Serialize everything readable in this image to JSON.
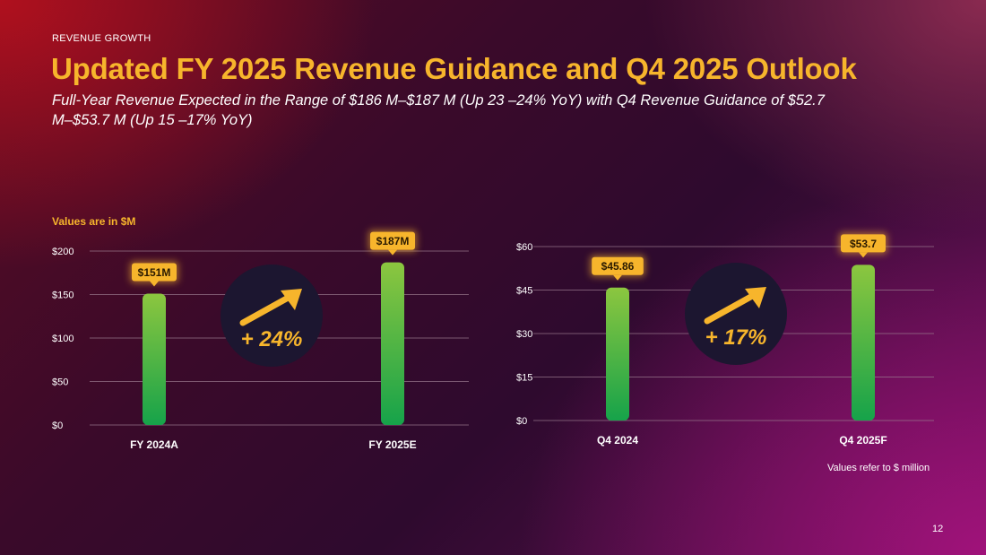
{
  "header": {
    "section_label": "REVENUE GROWTH",
    "title": "Updated FY 2025 Revenue Guidance and Q4 2025 Outlook",
    "subtitle": "Full-Year Revenue Expected in the Range of $186 M–$187 M (Up 23 –24% YoY) with Q4 Revenue Guidance of $52.7 M–$53.7 M (Up 15 –17% YoY)"
  },
  "notes": {
    "units": "Values are in $M",
    "footnote": "Values refer to $ million",
    "page_number": "12"
  },
  "colors": {
    "accent": "#f7b52c",
    "bar_top": "#8cc63f",
    "bar_bottom": "#16a34a",
    "badge_bg": "#1c1630"
  },
  "chart_data": [
    {
      "type": "bar",
      "categories": [
        "FY 2024A",
        "FY 2025E"
      ],
      "values": [
        151,
        187
      ],
      "data_labels": [
        "$151M",
        "$187M"
      ],
      "yticks": [
        0,
        50,
        100,
        150,
        200
      ],
      "ytick_labels": [
        "$0",
        "$50",
        "$100",
        "$150",
        "$200"
      ],
      "ylim": [
        0,
        200
      ],
      "growth_label": "+ 24%",
      "growth_icon": "arrow-up-right-icon"
    },
    {
      "type": "bar",
      "categories": [
        "Q4 2024",
        "Q4 2025F"
      ],
      "values": [
        45.86,
        53.7
      ],
      "data_labels": [
        "$45.86",
        "$53.7"
      ],
      "yticks": [
        0,
        15,
        30,
        45,
        60
      ],
      "ytick_labels": [
        "$0",
        "$15",
        "$30",
        "$45",
        "$60"
      ],
      "ylim": [
        0,
        60
      ],
      "growth_label": "+ 17%",
      "growth_icon": "arrow-up-right-icon"
    }
  ]
}
